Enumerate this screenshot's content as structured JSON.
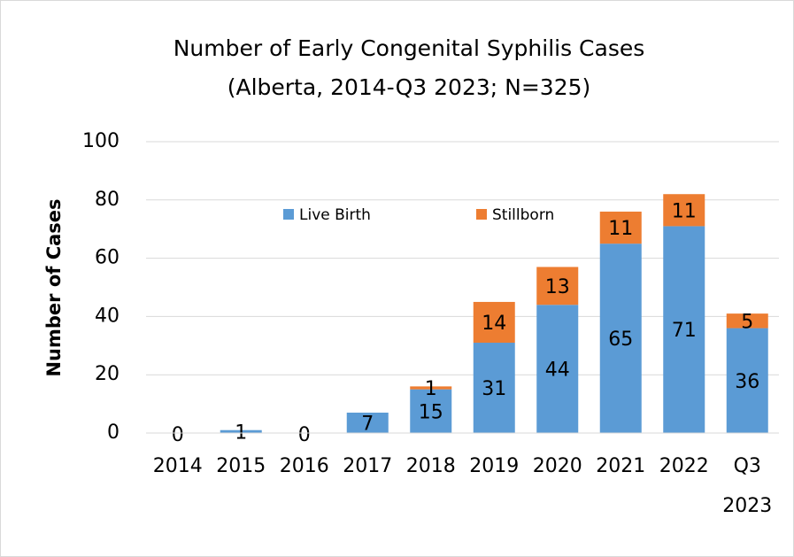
{
  "chart_data": {
    "type": "stacked-bar",
    "title": "Number of Early Congenital Syphilis Cases",
    "subtitle": "(Alberta, 2014-Q3 2023; N=325)",
    "y_label": "Number of Cases",
    "categories": [
      "2014",
      "2015",
      "2016",
      "2017",
      "2018",
      "2019",
      "2020",
      "2021",
      "2022",
      "Q3 2023"
    ],
    "series": [
      {
        "name": "Live Birth",
        "color": "#5b9bd5",
        "values": [
          0,
          1,
          0,
          7,
          15,
          31,
          44,
          65,
          71,
          36
        ]
      },
      {
        "name": "Stillborn",
        "color": "#ed7d31",
        "values": [
          0,
          0,
          0,
          0,
          1,
          14,
          13,
          11,
          11,
          5
        ]
      }
    ],
    "ylim": [
      0,
      100
    ],
    "yticks": [
      0,
      20,
      40,
      60,
      80,
      100
    ],
    "grid": true
  }
}
